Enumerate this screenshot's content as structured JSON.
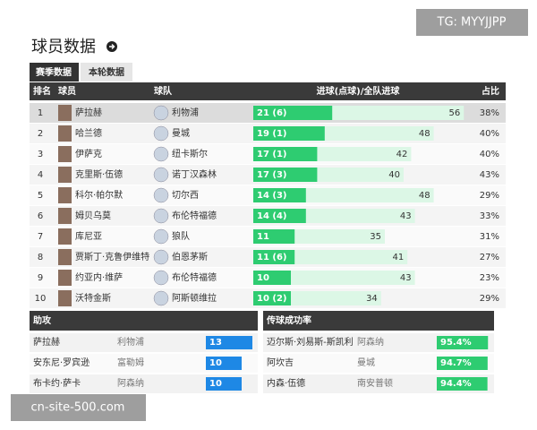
{
  "watermark_top": "TG: MYYJJPP",
  "title": "球员数据",
  "tabs": [
    "赛季数据",
    "本轮数据"
  ],
  "table": {
    "headers": [
      "排名",
      "球员",
      "球队",
      "进球(点球)/全队进球",
      "占比"
    ],
    "rows": [
      {
        "rank": 1,
        "player": "萨拉赫",
        "team": "利物浦",
        "goals": 21,
        "goal_label": "21 (6)",
        "team_goals": 56,
        "share": "38%"
      },
      {
        "rank": 2,
        "player": "哈兰德",
        "team": "曼城",
        "goals": 19,
        "goal_label": "19 (1)",
        "team_goals": 48,
        "share": "40%"
      },
      {
        "rank": 3,
        "player": "伊萨克",
        "team": "纽卡斯尔",
        "goals": 17,
        "goal_label": "17 (1)",
        "team_goals": 42,
        "share": "40%"
      },
      {
        "rank": 4,
        "player": "克里斯·伍德",
        "team": "诺丁汉森林",
        "goals": 17,
        "goal_label": "17 (3)",
        "team_goals": 40,
        "share": "43%"
      },
      {
        "rank": 5,
        "player": "科尔·帕尔默",
        "team": "切尔西",
        "goals": 14,
        "goal_label": "14 (3)",
        "team_goals": 48,
        "share": "29%"
      },
      {
        "rank": 6,
        "player": "姆贝乌莫",
        "team": "布伦特福德",
        "goals": 14,
        "goal_label": "14 (4)",
        "team_goals": 43,
        "share": "33%"
      },
      {
        "rank": 7,
        "player": "库尼亚",
        "team": "狼队",
        "goals": 11,
        "goal_label": "11",
        "team_goals": 35,
        "share": "31%"
      },
      {
        "rank": 8,
        "player": "贾斯丁·克鲁伊维特",
        "team": "伯恩茅斯",
        "goals": 11,
        "goal_label": "11 (6)",
        "team_goals": 41,
        "share": "27%"
      },
      {
        "rank": 9,
        "player": "约亚内·维萨",
        "team": "布伦特福德",
        "goals": 10,
        "goal_label": "10",
        "team_goals": 43,
        "share": "23%"
      },
      {
        "rank": 10,
        "player": "沃特金斯",
        "team": "阿斯顿维拉",
        "goals": 10,
        "goal_label": "10 (2)",
        "team_goals": 34,
        "share": "29%"
      }
    ]
  },
  "assists": {
    "title": "助攻",
    "rows": [
      {
        "player": "萨拉赫",
        "team": "利物浦",
        "assists": 13
      },
      {
        "player": "安东尼·罗宾逊",
        "team": "富勒姆",
        "assists": 10
      },
      {
        "player": "布卡约·萨卡",
        "team": "阿森纳",
        "assists": 10
      }
    ]
  },
  "passing": {
    "title": "传球成功率",
    "rows": [
      {
        "player": "迈尔斯·刘易斯-斯凯利",
        "team": "阿森纳",
        "pct": {
          "value": 95.4,
          "label": "95.4%"
        }
      },
      {
        "player": "阿坎吉",
        "team": "曼城",
        "pct": {
          "value": 94.7,
          "label": "94.7%"
        }
      },
      {
        "player": "内森·伍德",
        "team": "南安普顿",
        "pct": {
          "value": 94.4,
          "label": "94.4%"
        }
      }
    ]
  },
  "watermark_bottom": "cn-site-500.com"
}
